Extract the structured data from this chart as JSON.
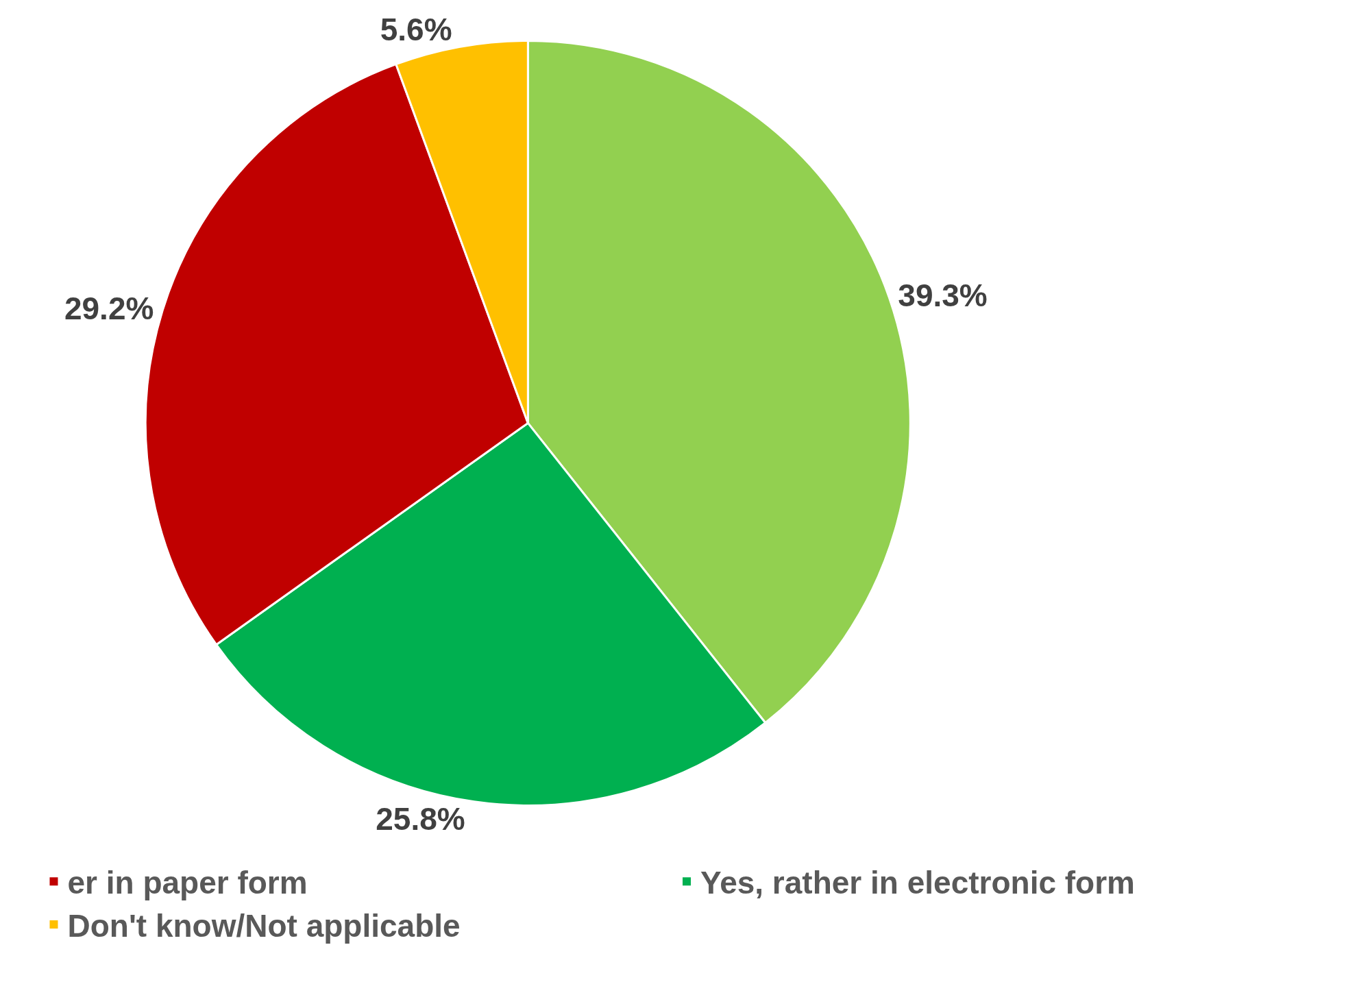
{
  "chart_data": {
    "type": "pie",
    "categories": [
      null,
      "Yes, rather in electronic form",
      "er in paper form",
      "Don't know/Not applicable"
    ],
    "values": [
      39.3,
      25.8,
      29.2,
      5.6
    ],
    "colors": [
      "#92d050",
      "#00b050",
      "#c00000",
      "#ffc000"
    ],
    "value_labels": [
      "39.3%",
      "25.8%",
      "29.2%",
      "5.6%"
    ],
    "legend": "bottom"
  }
}
